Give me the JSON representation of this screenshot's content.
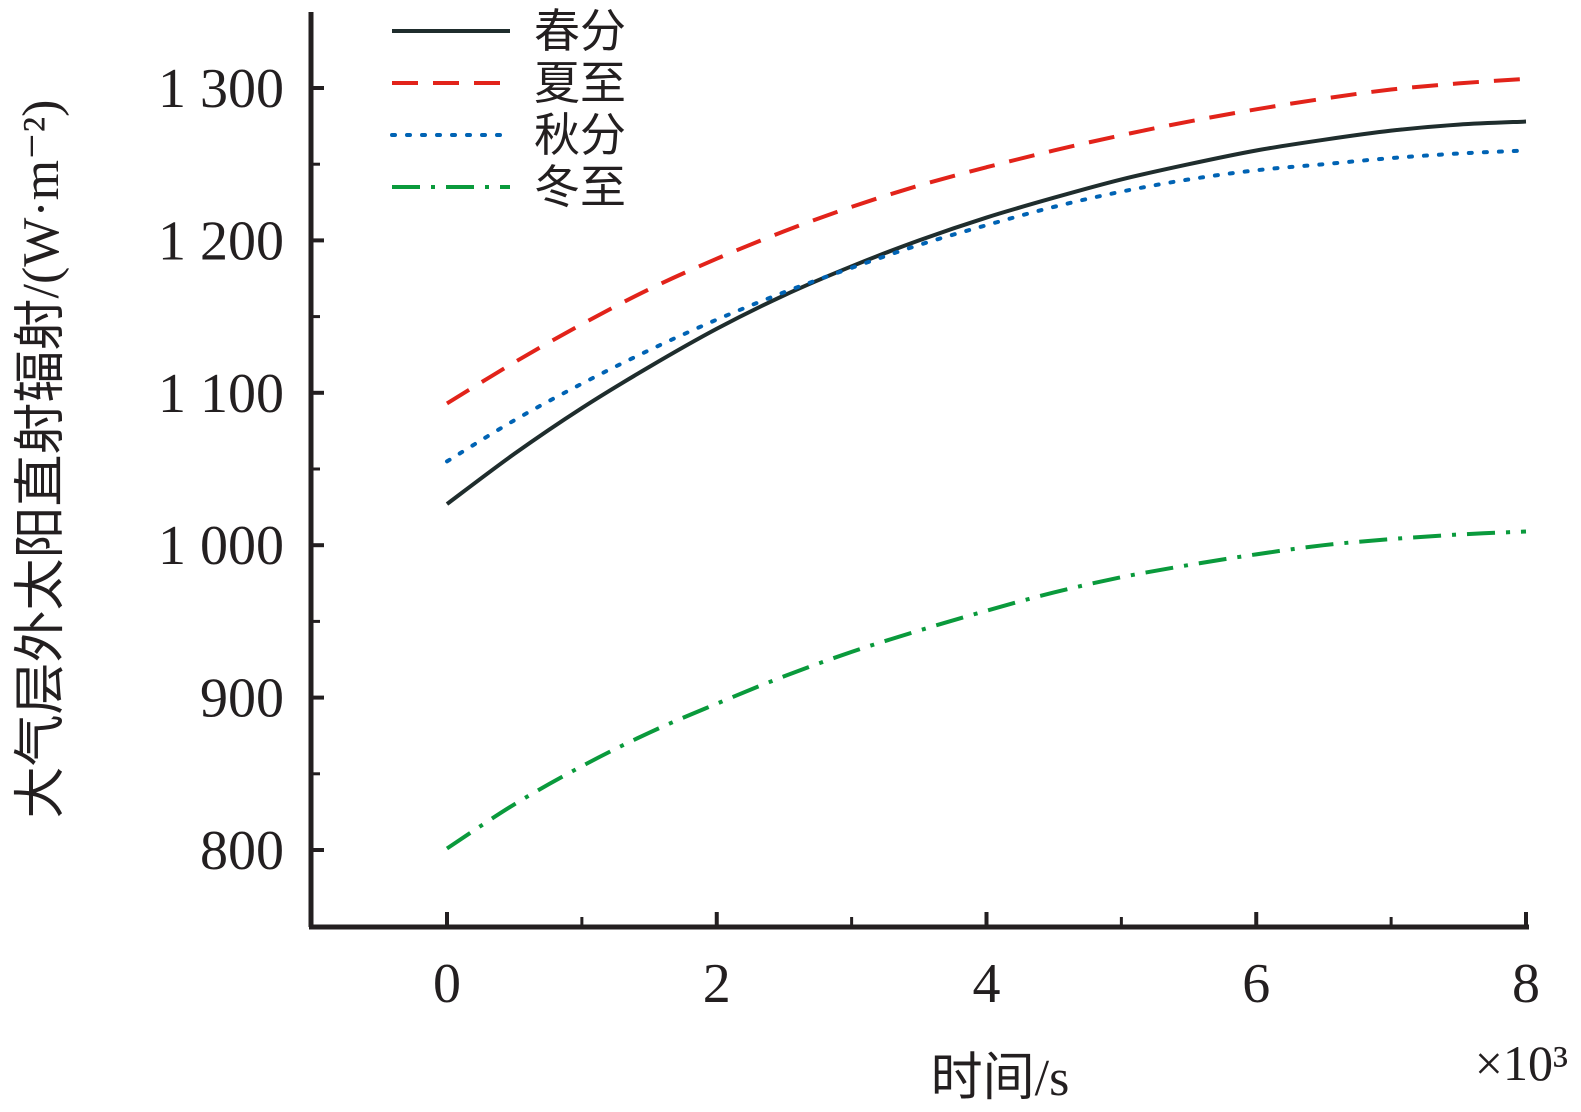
{
  "chart_data": {
    "type": "line",
    "xlabel": "时间/s",
    "ylabel": "大气层外太阳直射辐射/(W·m⁻²)",
    "x_multiplier": "×10³",
    "xlim": [
      -1,
      8
    ],
    "ylim": [
      750,
      1300
    ],
    "x_ticks": [
      0,
      2,
      4,
      6,
      8
    ],
    "x_tick_labels": [
      "0",
      "2",
      "4",
      "6",
      "8"
    ],
    "x_minor_ticks": [
      1,
      3,
      5,
      7
    ],
    "y_ticks": [
      800,
      900,
      1000,
      1100,
      1200,
      1300
    ],
    "y_tick_labels": [
      "800",
      "900",
      "1 000",
      "1 100",
      "1 200",
      "1 300"
    ],
    "y_minor_ticks": [
      850,
      950,
      1050,
      1150,
      1250
    ],
    "legend_position": "top-left",
    "grid": false,
    "x": [
      0,
      0.5,
      1,
      1.5,
      2,
      2.5,
      3,
      3.5,
      4,
      4.5,
      5,
      5.5,
      6,
      6.5,
      7,
      7.5,
      8
    ],
    "series": [
      {
        "name": "春分",
        "color": "#1f2d2d",
        "dash": "solid",
        "values": [
          1027,
          1060,
          1090,
          1117,
          1142,
          1164,
          1183,
          1200,
          1215,
          1228,
          1240,
          1250,
          1259,
          1266,
          1272,
          1276,
          1278
        ]
      },
      {
        "name": "夏至",
        "color": "#e2231a",
        "dash": "dashed",
        "values": [
          1093,
          1120,
          1145,
          1168,
          1188,
          1206,
          1222,
          1236,
          1248,
          1259,
          1269,
          1278,
          1286,
          1293,
          1299,
          1303,
          1306
        ]
      },
      {
        "name": "秋分",
        "color": "#0063b4",
        "dash": "dotted",
        "values": [
          1055,
          1082,
          1106,
          1128,
          1148,
          1166,
          1182,
          1197,
          1210,
          1222,
          1232,
          1240,
          1246,
          1250,
          1254,
          1257,
          1259
        ]
      },
      {
        "name": "冬至",
        "color": "#0a9a3c",
        "dash": "dashdot",
        "values": [
          801,
          830,
          855,
          877,
          896,
          914,
          930,
          944,
          957,
          969,
          979,
          987,
          994,
          1000,
          1004,
          1007,
          1009
        ]
      }
    ]
  }
}
